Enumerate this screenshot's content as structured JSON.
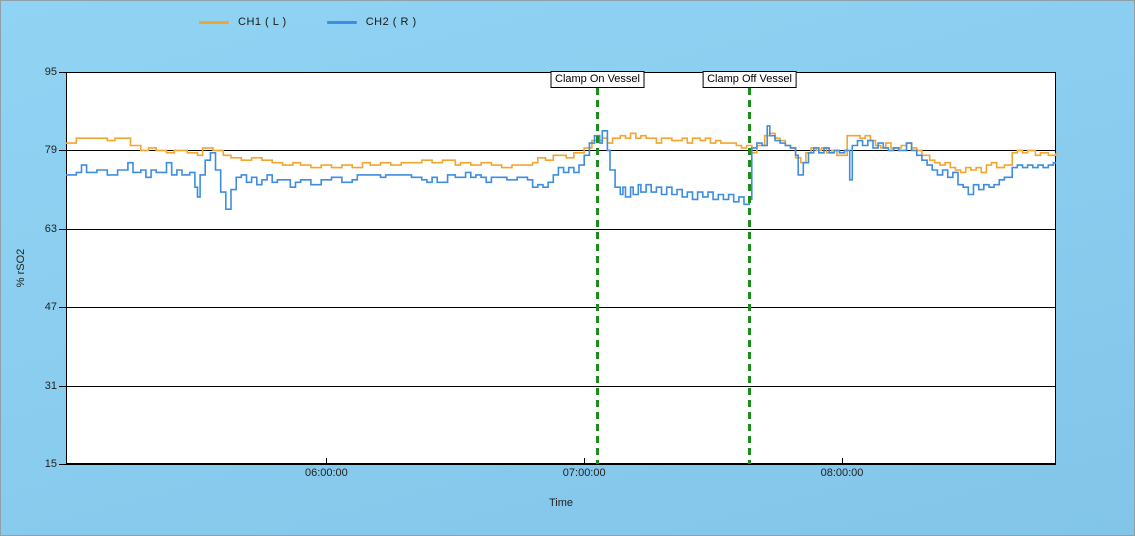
{
  "legend": {
    "items": [
      {
        "label": "CH1 ( L )"
      },
      {
        "label": "CH2 ( R )"
      }
    ]
  },
  "colors": {
    "background": "#8BCDEF",
    "plot_background": "#FFFFFF",
    "axis": "#000000",
    "ch1": "#F2A62F",
    "ch2": "#3D8DE3",
    "event_marker": "#1C8C1C"
  },
  "chart_data": {
    "type": "line",
    "title": "",
    "xlabel": "Time",
    "ylabel": "% rSO2",
    "xlim": [
      4.99,
      8.83
    ],
    "ylim": [
      15,
      95
    ],
    "grid": "horizontal",
    "legend_position": "top",
    "annotation_color": "#1C8C1C",
    "x_ticks": [
      {
        "value": 6,
        "label": "06:00:00"
      },
      {
        "value": 7,
        "label": "07:00:00"
      },
      {
        "value": 8,
        "label": "08:00:00"
      }
    ],
    "y_ticks": [
      {
        "value": 95,
        "label": "95"
      },
      {
        "value": 79,
        "label": "79"
      },
      {
        "value": 63,
        "label": "63"
      },
      {
        "value": 47,
        "label": "47"
      },
      {
        "value": 31,
        "label": "31"
      },
      {
        "value": 15,
        "label": "15"
      }
    ],
    "annotations": [
      {
        "label": "Clamp On Vessel",
        "time": 7.05
      },
      {
        "label": "Clamp Off Vessel",
        "time": 7.64
      }
    ],
    "series": [
      {
        "name": "CH1 ( L )",
        "color": "#F2A62F",
        "points": [
          [
            4.99,
            80.5
          ],
          [
            5.03,
            81.5
          ],
          [
            5.15,
            81
          ],
          [
            5.18,
            81.5
          ],
          [
            5.24,
            80
          ],
          [
            5.28,
            79
          ],
          [
            5.31,
            79.5
          ],
          [
            5.34,
            79
          ],
          [
            5.38,
            78.5
          ],
          [
            5.41,
            79
          ],
          [
            5.46,
            78.5
          ],
          [
            5.5,
            78
          ],
          [
            5.52,
            79.5
          ],
          [
            5.56,
            79
          ],
          [
            5.6,
            78
          ],
          [
            5.63,
            77.5
          ],
          [
            5.67,
            77
          ],
          [
            5.71,
            77.5
          ],
          [
            5.75,
            77
          ],
          [
            5.79,
            76.5
          ],
          [
            5.83,
            76
          ],
          [
            5.87,
            76.5
          ],
          [
            5.9,
            76
          ],
          [
            5.94,
            75.5
          ],
          [
            5.98,
            76
          ],
          [
            6.02,
            75.5
          ],
          [
            6.06,
            76
          ],
          [
            6.1,
            75.5
          ],
          [
            6.14,
            76.5
          ],
          [
            6.17,
            76
          ],
          [
            6.21,
            76.5
          ],
          [
            6.25,
            76
          ],
          [
            6.29,
            76.5
          ],
          [
            6.37,
            77
          ],
          [
            6.41,
            76.5
          ],
          [
            6.45,
            77
          ],
          [
            6.5,
            76
          ],
          [
            6.52,
            76.5
          ],
          [
            6.56,
            76
          ],
          [
            6.6,
            76.5
          ],
          [
            6.64,
            76
          ],
          [
            6.68,
            75.5
          ],
          [
            6.72,
            76
          ],
          [
            6.8,
            76.5
          ],
          [
            6.82,
            77.5
          ],
          [
            6.85,
            77
          ],
          [
            6.88,
            78
          ],
          [
            6.93,
            77.5
          ],
          [
            6.96,
            78.5
          ],
          [
            7.0,
            79.5
          ],
          [
            7.03,
            81
          ],
          [
            7.07,
            81.5
          ],
          [
            7.09,
            80.5
          ],
          [
            7.11,
            81.5
          ],
          [
            7.14,
            82
          ],
          [
            7.16,
            81.5
          ],
          [
            7.18,
            82.5
          ],
          [
            7.2,
            81.5
          ],
          [
            7.22,
            82
          ],
          [
            7.24,
            81.5
          ],
          [
            7.28,
            80.5
          ],
          [
            7.3,
            81.5
          ],
          [
            7.34,
            81
          ],
          [
            7.38,
            81.5
          ],
          [
            7.4,
            80.5
          ],
          [
            7.42,
            81.5
          ],
          [
            7.45,
            81
          ],
          [
            7.47,
            81.5
          ],
          [
            7.49,
            80.5
          ],
          [
            7.51,
            81
          ],
          [
            7.53,
            80.5
          ],
          [
            7.57,
            80.5
          ],
          [
            7.59,
            80
          ],
          [
            7.61,
            79.5
          ],
          [
            7.63,
            80
          ],
          [
            7.65,
            78.5
          ],
          [
            7.67,
            80
          ],
          [
            7.7,
            82
          ],
          [
            7.72,
            82.5
          ],
          [
            7.74,
            81.5
          ],
          [
            7.76,
            81
          ],
          [
            7.78,
            80
          ],
          [
            7.8,
            79.5
          ],
          [
            7.82,
            77.5
          ],
          [
            7.84,
            76.5
          ],
          [
            7.86,
            78.5
          ],
          [
            7.88,
            79.5
          ],
          [
            7.9,
            79
          ],
          [
            7.92,
            79.5
          ],
          [
            7.94,
            78.5
          ],
          [
            7.96,
            79
          ],
          [
            7.98,
            78
          ],
          [
            8.02,
            82
          ],
          [
            8.07,
            81.5
          ],
          [
            8.09,
            82
          ],
          [
            8.11,
            81
          ],
          [
            8.13,
            80
          ],
          [
            8.15,
            79.5
          ],
          [
            8.17,
            80.5
          ],
          [
            8.19,
            79.5
          ],
          [
            8.23,
            80
          ],
          [
            8.25,
            80.5
          ],
          [
            8.27,
            79.5
          ],
          [
            8.29,
            79
          ],
          [
            8.31,
            78
          ],
          [
            8.34,
            77
          ],
          [
            8.36,
            76.5
          ],
          [
            8.38,
            76
          ],
          [
            8.4,
            76.5
          ],
          [
            8.42,
            75.5
          ],
          [
            8.44,
            75
          ],
          [
            8.46,
            74.5
          ],
          [
            8.48,
            75.5
          ],
          [
            8.5,
            75
          ],
          [
            8.52,
            75.5
          ],
          [
            8.54,
            74.5
          ],
          [
            8.56,
            76
          ],
          [
            8.58,
            76.5
          ],
          [
            8.6,
            75.5
          ],
          [
            8.63,
            76
          ],
          [
            8.66,
            78.5
          ],
          [
            8.68,
            79
          ],
          [
            8.7,
            78.5
          ],
          [
            8.72,
            79
          ],
          [
            8.75,
            78
          ],
          [
            8.77,
            78.5
          ],
          [
            8.8,
            78
          ],
          [
            8.83,
            78.5
          ]
        ]
      },
      {
        "name": "CH2 ( R )",
        "color": "#3D8DE3",
        "points": [
          [
            4.99,
            74
          ],
          [
            5.03,
            74.5
          ],
          [
            5.05,
            76
          ],
          [
            5.07,
            74.5
          ],
          [
            5.11,
            75
          ],
          [
            5.15,
            74
          ],
          [
            5.19,
            75
          ],
          [
            5.23,
            76.5
          ],
          [
            5.25,
            74.5
          ],
          [
            5.28,
            75
          ],
          [
            5.3,
            73.5
          ],
          [
            5.32,
            75
          ],
          [
            5.34,
            74.5
          ],
          [
            5.38,
            76.5
          ],
          [
            5.4,
            74
          ],
          [
            5.42,
            75
          ],
          [
            5.44,
            74
          ],
          [
            5.47,
            74.5
          ],
          [
            5.49,
            71.5
          ],
          [
            5.5,
            69.5
          ],
          [
            5.51,
            74
          ],
          [
            5.53,
            77
          ],
          [
            5.55,
            78.5
          ],
          [
            5.57,
            75
          ],
          [
            5.59,
            70.5
          ],
          [
            5.61,
            67
          ],
          [
            5.63,
            71
          ],
          [
            5.65,
            73.5
          ],
          [
            5.67,
            74
          ],
          [
            5.69,
            72.5
          ],
          [
            5.71,
            73.5
          ],
          [
            5.73,
            72
          ],
          [
            5.75,
            73
          ],
          [
            5.77,
            74
          ],
          [
            5.79,
            72.5
          ],
          [
            5.81,
            73
          ],
          [
            5.86,
            71.5
          ],
          [
            5.88,
            72.5
          ],
          [
            5.9,
            73
          ],
          [
            5.94,
            72
          ],
          [
            5.98,
            73
          ],
          [
            6.02,
            73.5
          ],
          [
            6.06,
            72.5
          ],
          [
            6.1,
            73
          ],
          [
            6.12,
            74
          ],
          [
            6.21,
            73.5
          ],
          [
            6.23,
            74
          ],
          [
            6.33,
            73.5
          ],
          [
            6.37,
            73
          ],
          [
            6.39,
            72.5
          ],
          [
            6.41,
            73.5
          ],
          [
            6.43,
            72.5
          ],
          [
            6.47,
            74
          ],
          [
            6.5,
            73.5
          ],
          [
            6.54,
            74.5
          ],
          [
            6.56,
            73.5
          ],
          [
            6.58,
            74
          ],
          [
            6.6,
            73.5
          ],
          [
            6.62,
            72.5
          ],
          [
            6.64,
            73.5
          ],
          [
            6.7,
            73
          ],
          [
            6.74,
            73.5
          ],
          [
            6.78,
            73
          ],
          [
            6.8,
            71.5
          ],
          [
            6.82,
            72
          ],
          [
            6.84,
            71.5
          ],
          [
            6.86,
            72.5
          ],
          [
            6.88,
            74
          ],
          [
            6.9,
            75.5
          ],
          [
            6.92,
            74.5
          ],
          [
            6.94,
            75.5
          ],
          [
            6.96,
            74.5
          ],
          [
            6.98,
            76
          ],
          [
            7.0,
            78
          ],
          [
            7.02,
            80.5
          ],
          [
            7.04,
            82
          ],
          [
            7.06,
            80.5
          ],
          [
            7.07,
            83
          ],
          [
            7.09,
            79
          ],
          [
            7.1,
            75
          ],
          [
            7.12,
            71.5
          ],
          [
            7.14,
            70
          ],
          [
            7.15,
            71.5
          ],
          [
            7.16,
            69.5
          ],
          [
            7.18,
            71.5
          ],
          [
            7.19,
            70
          ],
          [
            7.21,
            72
          ],
          [
            7.22,
            70.5
          ],
          [
            7.24,
            72
          ],
          [
            7.26,
            70.5
          ],
          [
            7.28,
            71.5
          ],
          [
            7.3,
            70
          ],
          [
            7.32,
            71.5
          ],
          [
            7.34,
            70
          ],
          [
            7.36,
            71
          ],
          [
            7.38,
            69.5
          ],
          [
            7.4,
            70.5
          ],
          [
            7.42,
            69
          ],
          [
            7.44,
            70.5
          ],
          [
            7.46,
            69.5
          ],
          [
            7.48,
            70.5
          ],
          [
            7.5,
            69
          ],
          [
            7.52,
            70
          ],
          [
            7.54,
            69
          ],
          [
            7.56,
            70
          ],
          [
            7.58,
            68.5
          ],
          [
            7.6,
            69.5
          ],
          [
            7.62,
            68
          ],
          [
            7.64,
            69
          ],
          [
            7.65,
            79.5
          ],
          [
            7.67,
            80.5
          ],
          [
            7.69,
            80
          ],
          [
            7.71,
            84
          ],
          [
            7.72,
            82
          ],
          [
            7.74,
            81
          ],
          [
            7.76,
            80.5
          ],
          [
            7.78,
            80
          ],
          [
            7.8,
            79.5
          ],
          [
            7.82,
            78
          ],
          [
            7.83,
            74
          ],
          [
            7.85,
            76.5
          ],
          [
            7.87,
            78.5
          ],
          [
            7.89,
            79.5
          ],
          [
            7.91,
            78.5
          ],
          [
            7.93,
            79.5
          ],
          [
            7.95,
            78.5
          ],
          [
            7.97,
            79
          ],
          [
            7.99,
            78.5
          ],
          [
            8.01,
            79
          ],
          [
            8.03,
            73
          ],
          [
            8.04,
            80
          ],
          [
            8.06,
            81
          ],
          [
            8.08,
            80
          ],
          [
            8.1,
            81
          ],
          [
            8.12,
            79.5
          ],
          [
            8.14,
            80.5
          ],
          [
            8.16,
            79.5
          ],
          [
            8.18,
            79
          ],
          [
            8.2,
            79.5
          ],
          [
            8.22,
            79
          ],
          [
            8.25,
            80.5
          ],
          [
            8.27,
            79
          ],
          [
            8.29,
            78
          ],
          [
            8.31,
            77
          ],
          [
            8.33,
            76
          ],
          [
            8.35,
            75
          ],
          [
            8.37,
            74
          ],
          [
            8.39,
            75
          ],
          [
            8.41,
            73.5
          ],
          [
            8.43,
            74.5
          ],
          [
            8.45,
            72
          ],
          [
            8.47,
            71.5
          ],
          [
            8.49,
            70
          ],
          [
            8.51,
            72
          ],
          [
            8.53,
            71
          ],
          [
            8.55,
            72
          ],
          [
            8.57,
            71.5
          ],
          [
            8.59,
            72
          ],
          [
            8.61,
            73
          ],
          [
            8.63,
            73.5
          ],
          [
            8.66,
            75.5
          ],
          [
            8.68,
            76
          ],
          [
            8.7,
            75.5
          ],
          [
            8.72,
            76
          ],
          [
            8.74,
            75.5
          ],
          [
            8.76,
            76
          ],
          [
            8.78,
            75.5
          ],
          [
            8.8,
            76
          ],
          [
            8.82,
            76.5
          ]
        ]
      }
    ]
  }
}
